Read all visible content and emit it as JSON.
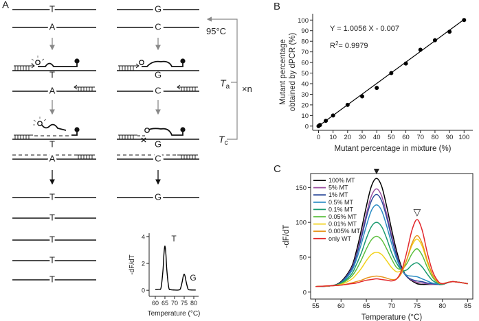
{
  "panel_labels": [
    "A",
    "B",
    "C"
  ],
  "diagram": {
    "left_strands": [
      "T",
      "A",
      "T",
      "A",
      "T",
      "A"
    ],
    "right_strands": [
      "G",
      "C",
      "G",
      "C",
      "G",
      "C"
    ],
    "left_products": [
      "T",
      "T",
      "T",
      "T",
      "T"
    ],
    "right_products": [
      "G"
    ],
    "denature": "95°C",
    "anneal": {
      "symbol": "T",
      "subscript": "a"
    },
    "cycles": "×n",
    "extend": {
      "symbol": "T",
      "subscript": "c"
    }
  },
  "chart_data": [
    {
      "type": "scatter",
      "x": [
        0,
        1,
        5,
        10,
        20,
        30,
        40,
        50,
        60,
        70,
        80,
        90,
        100
      ],
      "values": [
        0,
        1,
        5,
        10,
        20,
        28,
        36,
        50,
        59,
        72,
        81,
        89,
        100
      ],
      "color": "#000000",
      "fit_line": {
        "x": [
          0,
          100
        ],
        "values": [
          -0.007,
          100.553
        ]
      },
      "annotations": [
        "Y = 1.0056 X - 0.007",
        {
          "base": "R",
          "sup": "2",
          "rest": "= 0.9979"
        }
      ],
      "xlabel": "Mutant percentage in mixture (%)",
      "ylabel": [
        "Mutant percentage",
        "obtained by dPCR (%)"
      ],
      "xlim": [
        -4,
        106
      ],
      "ylim": [
        -4,
        106
      ],
      "xticks": [
        0,
        10,
        20,
        30,
        40,
        50,
        60,
        70,
        80,
        90,
        100
      ],
      "yticks": [
        0,
        10,
        20,
        30,
        40,
        50,
        60,
        70,
        80,
        90,
        100
      ]
    },
    {
      "type": "line",
      "x": [
        55,
        58,
        60,
        62,
        63,
        64,
        65,
        66,
        67,
        68,
        69,
        70,
        71,
        72,
        73,
        74,
        75,
        76,
        77,
        78,
        79,
        80,
        82,
        85
      ],
      "series": [
        {
          "name": "100% MT",
          "color": "#000000",
          "values": [
            8,
            9,
            15,
            35,
            58,
            89,
            123,
            152,
            163,
            152,
            123,
            89,
            58,
            35,
            22,
            16,
            12,
            11,
            11,
            11,
            11,
            11,
            15,
            12
          ]
        },
        {
          "name": "5% MT",
          "color": "#9a4fa0",
          "values": [
            8,
            9,
            14,
            33,
            53,
            81,
            112,
            138,
            148,
            138,
            112,
            81,
            53,
            33,
            22,
            17,
            14,
            13,
            12,
            11,
            11,
            11,
            15,
            12
          ]
        },
        {
          "name": "1% MT",
          "color": "#2b4a9b",
          "values": [
            8,
            9,
            14,
            32,
            51,
            77,
            107,
            131,
            140,
            131,
            107,
            77,
            51,
            32,
            22,
            18,
            16,
            15,
            13,
            12,
            11,
            11,
            15,
            12
          ]
        },
        {
          "name": "0.5% MT",
          "color": "#2a8cc4",
          "values": [
            8,
            9,
            13,
            29,
            46,
            69,
            95,
            117,
            125,
            117,
            95,
            69,
            47,
            31,
            24,
            23,
            22,
            19,
            16,
            13,
            12,
            11,
            15,
            12
          ]
        },
        {
          "name": "0.1% MT",
          "color": "#1a9a70",
          "values": [
            8,
            9,
            13,
            25,
            39,
            56,
            77,
            94,
            100,
            94,
            77,
            56,
            41,
            31,
            32,
            39,
            42,
            36,
            26,
            17,
            13,
            11,
            15,
            12
          ]
        },
        {
          "name": "0.05% MT",
          "color": "#5cbf3e",
          "values": [
            8,
            9,
            12,
            22,
            32,
            46,
            62,
            75,
            80,
            75,
            62,
            47,
            35,
            33,
            41,
            55,
            62,
            53,
            36,
            22,
            14,
            12,
            15,
            12
          ]
        },
        {
          "name": "0.01% MT",
          "color": "#f2d21a",
          "values": [
            8,
            9,
            11,
            18,
            25,
            34,
            45,
            54,
            57,
            54,
            45,
            35,
            29,
            32,
            47,
            67,
            76,
            66,
            43,
            25,
            15,
            12,
            15,
            12
          ]
        },
        {
          "name": "0.005% MT",
          "color": "#e8961e",
          "values": [
            8,
            9,
            10,
            13,
            15,
            17,
            20,
            22,
            23,
            22,
            20,
            18,
            19,
            28,
            47,
            70,
            81,
            70,
            46,
            26,
            15,
            12,
            15,
            12
          ]
        },
        {
          "name": "only WT",
          "color": "#e2282c",
          "values": [
            8,
            9,
            10,
            12,
            13,
            15,
            17,
            18,
            19,
            18,
            17,
            16,
            19,
            32,
            58,
            89,
            104,
            89,
            57,
            31,
            17,
            12,
            15,
            12
          ]
        }
      ],
      "annotations": [
        "▼",
        "▽"
      ],
      "xlabel": "Temperature (°C)",
      "ylabel": "-dF/dT",
      "xlim": [
        54,
        86
      ],
      "ylim": [
        -10,
        170
      ],
      "xticks": [
        55,
        60,
        65,
        70,
        75,
        80,
        85
      ],
      "yticks": [
        0,
        50,
        100,
        150
      ]
    },
    {
      "type": "line",
      "x": [
        60,
        62,
        63,
        64,
        64.5,
        65,
        65.5,
        66,
        67,
        68,
        70,
        72,
        73,
        74,
        74.5,
        75,
        75.5,
        76,
        77,
        78,
        80,
        81
      ],
      "series": [
        {
          "color": "#000000",
          "values": [
            0.05,
            0.08,
            0.2,
            1.5,
            2.7,
            3.3,
            2.7,
            1.5,
            0.2,
            0.05,
            0.02,
            0.02,
            0.1,
            0.65,
            1.03,
            1.2,
            1.03,
            0.65,
            0.1,
            0.03,
            0.02,
            0.02
          ]
        }
      ],
      "annotations": [
        "T",
        "G"
      ],
      "xlabel": "Temperature (°C)",
      "ylabel": "-dF/dT",
      "xlim": [
        56.8,
        82.5
      ],
      "ylim": [
        -0.45,
        4.25
      ],
      "xticks": [
        60,
        65,
        70,
        75,
        80
      ],
      "yticks": [
        0,
        2,
        4
      ]
    }
  ]
}
